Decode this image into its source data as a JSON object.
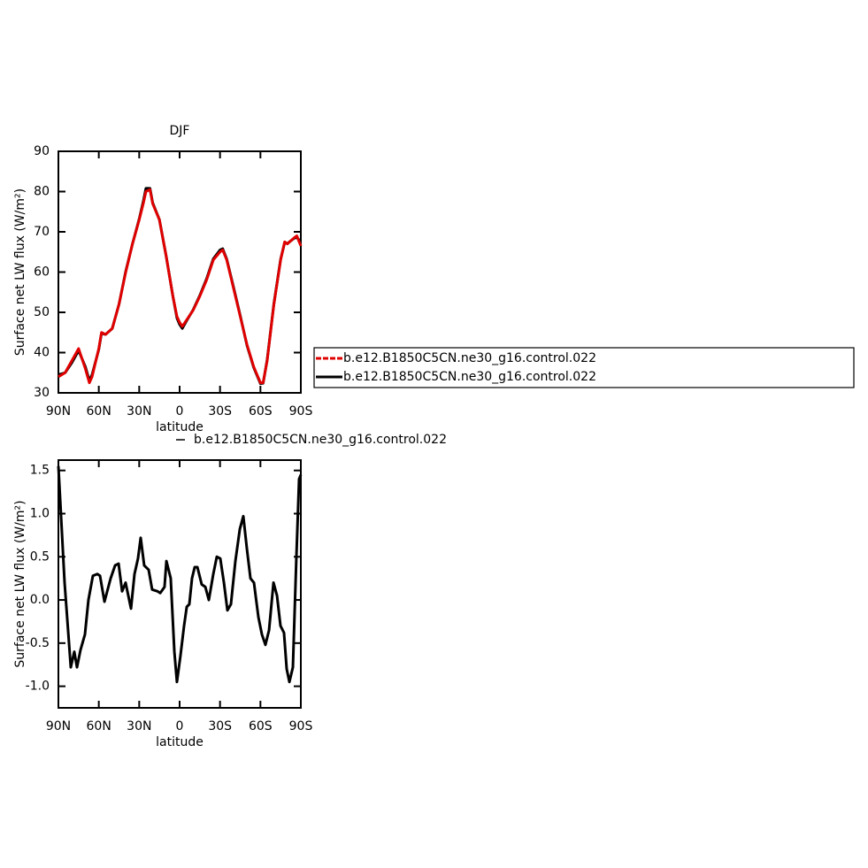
{
  "chart_data": [
    {
      "type": "line",
      "title": "DJF",
      "ylabel": "Surface net LW flux (W/m²)",
      "xlabel": "latitude",
      "x": [
        90,
        85,
        80,
        75,
        70,
        67,
        65,
        60,
        58,
        55,
        50,
        45,
        40,
        35,
        30,
        27,
        25,
        22,
        20,
        15,
        10,
        5,
        2,
        0,
        -2,
        -5,
        -10,
        -15,
        -20,
        -25,
        -30,
        -32,
        -35,
        -40,
        -45,
        -50,
        -55,
        -60,
        -62,
        -65,
        -70,
        -75,
        -78,
        -80,
        -85,
        -87,
        -90
      ],
      "series": [
        {
          "name": "b.e12.B1850C5CN.ne30_g16.control.022",
          "color": "#e00000",
          "values": [
            34,
            35,
            38,
            41,
            36,
            32.5,
            34,
            41,
            45,
            44.5,
            46,
            52,
            60,
            67,
            73,
            77,
            80,
            80.5,
            77,
            73,
            64,
            54,
            49,
            47.5,
            46.5,
            48,
            50.5,
            54,
            58,
            63,
            65,
            65.5,
            63,
            56,
            49,
            42,
            36.5,
            32.5,
            32.5,
            38,
            52,
            63,
            67.5,
            67,
            68.5,
            69,
            66.5
          ]
        },
        {
          "name": "b.e12.B1850C5CN.ne30_g16.control.022",
          "color": "#000000",
          "values": [
            34.5,
            35,
            37.5,
            40.5,
            36.5,
            33,
            34.5,
            40.8,
            44.8,
            44.5,
            46,
            52,
            60.2,
            67,
            73.2,
            77.5,
            80.8,
            80.8,
            77.2,
            73,
            64,
            54,
            48.6,
            47,
            46,
            47.8,
            50.6,
            54.2,
            58.3,
            63.3,
            65.5,
            65.8,
            63.2,
            56.3,
            49.2,
            41.8,
            36.3,
            32.3,
            32.4,
            38.2,
            52.2,
            63.2,
            67.3,
            67.1,
            68.4,
            68.6,
            67.5
          ]
        }
      ],
      "xlim": [
        90,
        -90
      ],
      "xticks": [
        {
          "value": 90,
          "label": "90N"
        },
        {
          "value": 60,
          "label": "60N"
        },
        {
          "value": 30,
          "label": "30N"
        },
        0,
        {
          "value": -30,
          "label": "30S"
        },
        {
          "value": -60,
          "label": "60S"
        },
        {
          "value": -90,
          "label": "90S"
        }
      ],
      "ylim": [
        30,
        90
      ],
      "yticks": [
        30,
        40,
        50,
        60,
        70,
        80,
        90
      ]
    },
    {
      "type": "line",
      "ylabel": "Surface net LW flux (W/m²)",
      "xlabel": "latitude",
      "x": [
        90,
        85.4,
        80.8,
        78.2,
        76.2,
        73.6,
        70.3,
        67.7,
        64.4,
        61.1,
        59.1,
        55.8,
        51.2,
        47.9,
        45.3,
        42.7,
        40.1,
        36.1,
        33.5,
        30.9,
        28.9,
        26.3,
        23,
        20.4,
        16.4,
        14.4,
        11.2,
        9.8,
        6.6,
        3.9,
        2,
        -0.6,
        -3.3,
        -5.3,
        -7.2,
        -9.2,
        -11.2,
        -13.2,
        -16.4,
        -19.1,
        -21.7,
        -25,
        -27.6,
        -30.2,
        -32.9,
        -35.5,
        -38.1,
        -41.4,
        -44.7,
        -47.3,
        -49.9,
        -52.6,
        -55.2,
        -58.5,
        -61.1,
        -63.7,
        -66.4,
        -69.7,
        -72.3,
        -74.9,
        -77.5,
        -79.5,
        -81.5,
        -84.1,
        -86.7,
        -88.7,
        -90
      ],
      "series": [
        {
          "name": "b.e12.B1850C5CN.ne30_g16.control.022",
          "color": "#000000",
          "values": [
            1.55,
            0.2,
            -0.78,
            -0.6,
            -0.78,
            -0.58,
            -0.4,
            0,
            0.28,
            0.3,
            0.28,
            -0.02,
            0.25,
            0.4,
            0.42,
            0.1,
            0.2,
            -0.1,
            0.3,
            0.48,
            0.72,
            0.4,
            0.35,
            0.12,
            0.1,
            0.08,
            0.15,
            0.45,
            0.25,
            -0.6,
            -0.95,
            -0.65,
            -0.3,
            -0.08,
            -0.05,
            0.25,
            0.38,
            0.38,
            0.18,
            0.15,
            0,
            0.3,
            0.5,
            0.48,
            0.2,
            -0.12,
            -0.05,
            0.45,
            0.82,
            0.97,
            0.6,
            0.25,
            0.2,
            -0.2,
            -0.4,
            -0.52,
            -0.35,
            0.2,
            0.05,
            -0.3,
            -0.38,
            -0.8,
            -0.95,
            -0.78,
            0.5,
            1.4,
            1.45
          ]
        }
      ],
      "xlim": [
        90,
        -90
      ],
      "xticks": [
        {
          "value": 90,
          "label": "90N"
        },
        {
          "value": 60,
          "label": "60N"
        },
        {
          "value": 30,
          "label": "30N"
        },
        0,
        {
          "value": -30,
          "label": "30S"
        },
        {
          "value": -60,
          "label": "60S"
        },
        {
          "value": -90,
          "label": "90S"
        }
      ],
      "ylim": [
        -1.25,
        1.62
      ],
      "yticks": [
        {
          "value": -1,
          "label": "-1.0"
        },
        -0.5,
        {
          "value": 0,
          "label": "0.0"
        },
        0.5,
        {
          "value": 1,
          "label": "1.0"
        },
        1.5
      ]
    }
  ]
}
